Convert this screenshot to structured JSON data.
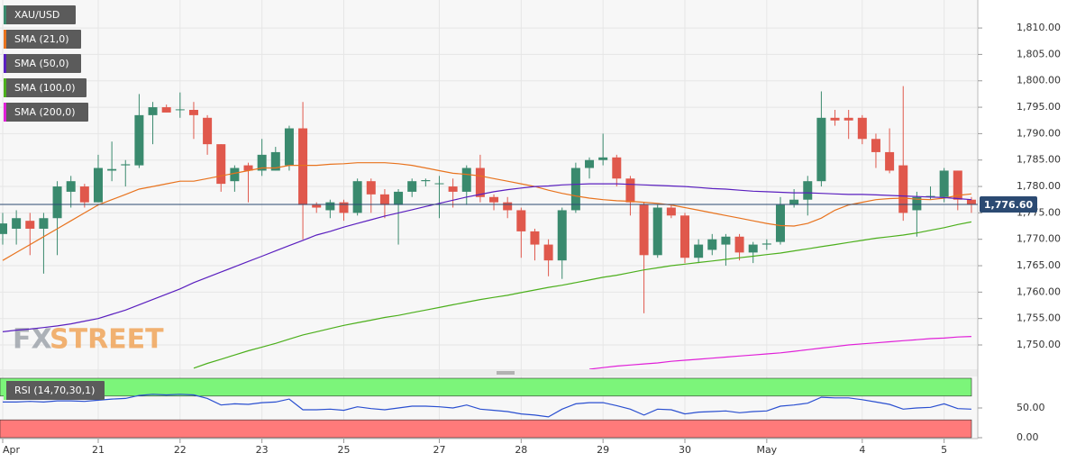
{
  "chart_data": {
    "type": "candlestick",
    "categories": [
      "Apr",
      null,
      null,
      null,
      null,
      null,
      null,
      "21",
      null,
      null,
      null,
      null,
      null,
      "22",
      null,
      null,
      null,
      null,
      null,
      "23",
      null,
      null,
      null,
      null,
      null,
      "25",
      null,
      null,
      null,
      null,
      null,
      null,
      "27",
      null,
      null,
      null,
      null,
      null,
      "28",
      null,
      null,
      null,
      null,
      null,
      "29",
      null,
      null,
      null,
      null,
      null,
      "30",
      null,
      null,
      null,
      null,
      null,
      "May",
      null,
      null,
      null,
      null,
      null,
      null,
      "4",
      null,
      null,
      null,
      null,
      null,
      "5",
      null,
      null
    ],
    "ylim": [
      1745.4,
      1815.3
    ],
    "yticks": [
      {
        "value": 1750,
        "label": "1,750.00"
      },
      {
        "value": 1755,
        "label": "1,755.00"
      },
      {
        "value": 1760,
        "label": "1,760.00"
      },
      {
        "value": 1765,
        "label": "1,765.00"
      },
      {
        "value": 1770,
        "label": "1,770.00"
      },
      {
        "value": 1775,
        "label": "1,775.00"
      },
      {
        "value": 1780,
        "label": "1,780.00"
      },
      {
        "value": 1785,
        "label": "1,785.00"
      },
      {
        "value": 1790,
        "label": "1,790.00"
      },
      {
        "value": 1795,
        "label": "1,795.00"
      },
      {
        "value": 1800,
        "label": "1,800.00"
      },
      {
        "value": 1805,
        "label": "1,805.00"
      },
      {
        "value": 1810,
        "label": "1,810.00"
      }
    ],
    "grid": true,
    "last_price": {
      "value": 1776.6,
      "label": "1,776.60",
      "color": "#2b4a72"
    },
    "watermark": {
      "prefix": "FX",
      "suffix": "STREET"
    },
    "series": [
      {
        "name": "XAU/USD",
        "type": "candlestick",
        "color": "#3a8a6e",
        "up_color": "#3a8a6e",
        "down_color": "#e0584c",
        "open": [
          1771,
          1772,
          1773.5,
          1772,
          1774,
          1779,
          1780,
          1777,
          1783,
          1784,
          1784,
          1793.5,
          1795,
          1794.5,
          1794.5,
          1793,
          1788,
          1781,
          1784,
          1783,
          1783,
          1784,
          1791,
          1776.5,
          1775.5,
          1777,
          1775,
          1781,
          1778.5,
          1776.5,
          1779,
          1781,
          1780.5,
          1780,
          1779,
          1783.5,
          1778,
          1777,
          1775.5,
          1771.5,
          1769,
          1766,
          1775.5,
          1783.5,
          1785,
          1785.5,
          1781.5,
          1776.5,
          1767,
          1776,
          1774.5,
          1766.5,
          1768,
          1769,
          1770.5,
          1767.5,
          1769,
          1769.5,
          1776.5,
          1777.5,
          1781,
          1793,
          1793,
          1793,
          1789,
          1786.5,
          1784,
          1775.5,
          1778,
          1778,
          1783,
          1777.5
        ],
        "high": [
          1775,
          1775.5,
          1775,
          1775,
          1781,
          1782,
          1780.5,
          1786,
          1788.5,
          1785,
          1797.5,
          1796,
          1795.5,
          1797.8,
          1796,
          1793.5,
          1788,
          1784,
          1784.5,
          1789,
          1787.5,
          1791.5,
          1796,
          1777,
          1777.5,
          1777.5,
          1781.5,
          1781.5,
          1779.5,
          1779.5,
          1781.5,
          1781.5,
          1782,
          1781.5,
          1784,
          1786,
          1778.5,
          1778,
          1776,
          1772,
          1770,
          1776,
          1784.5,
          1785.5,
          1790,
          1786,
          1782,
          1777,
          1776.5,
          1776.5,
          1775,
          1770,
          1771,
          1771,
          1771,
          1769.5,
          1770,
          1778,
          1779.5,
          1782,
          1798,
          1794.5,
          1794.5,
          1793.5,
          1790,
          1791,
          1799,
          1779,
          1780,
          1783.5,
          1783,
          1778
        ],
        "low": [
          1769,
          1769,
          1767,
          1763.5,
          1767,
          1776,
          1776,
          1777,
          1781,
          1780,
          1783.5,
          1788,
          1794,
          1793,
          1789,
          1786,
          1779,
          1779,
          1777,
          1782,
          1783,
          1783,
          1770,
          1775,
          1774,
          1773.5,
          1774.5,
          1775,
          1774,
          1769,
          1778,
          1780,
          1774,
          1776,
          1776.5,
          1777,
          1775.5,
          1774,
          1766.5,
          1766,
          1763,
          1762.5,
          1775,
          1781.5,
          1784,
          1780,
          1774.5,
          1756,
          1766.5,
          1774,
          1765.5,
          1765.5,
          1767,
          1765,
          1766,
          1765.5,
          1768,
          1769,
          1776,
          1774.5,
          1780,
          1791.5,
          1789,
          1788,
          1783.5,
          1782.5,
          1773.5,
          1770.5,
          1777.5,
          1777,
          1775.5,
          1775
        ],
        "close": [
          1773,
          1774,
          1772,
          1774,
          1780,
          1781,
          1777,
          1783.5,
          1783.3,
          1784.2,
          1793.5,
          1795,
          1794,
          1794.6,
          1793.5,
          1788,
          1780.5,
          1783.5,
          1783,
          1786,
          1786.5,
          1791,
          1776.5,
          1776,
          1777,
          1775,
          1781,
          1778.5,
          1776.5,
          1779,
          1781,
          1781.2,
          1780.6,
          1779,
          1783.5,
          1778,
          1777,
          1775.5,
          1771.5,
          1769,
          1766,
          1775.5,
          1783.5,
          1785,
          1785.5,
          1781.5,
          1777,
          1767,
          1776,
          1774.5,
          1766.5,
          1769,
          1770,
          1770.5,
          1767.5,
          1769,
          1769.2,
          1776.5,
          1777.5,
          1781,
          1793,
          1792.5,
          1792.5,
          1789,
          1786.5,
          1783,
          1775,
          1778,
          1778.2,
          1783,
          1777.5,
          1776.6
        ]
      },
      {
        "name": "SMA (21,0)",
        "type": "line",
        "color": "#e8731e",
        "values": [
          1766,
          1767.5,
          1769,
          1770.5,
          1772,
          1773.5,
          1775,
          1776.5,
          1777.5,
          1778.5,
          1779.5,
          1780,
          1780.5,
          1781,
          1781,
          1781.5,
          1782,
          1782.5,
          1783,
          1783.5,
          1783.5,
          1784,
          1784,
          1784,
          1784.2,
          1784.3,
          1784.5,
          1784.5,
          1784.5,
          1784.3,
          1784,
          1783.5,
          1783,
          1782.5,
          1782.3,
          1782,
          1781.5,
          1781,
          1780.5,
          1780,
          1779.3,
          1778.7,
          1778.2,
          1777.8,
          1777.5,
          1777.3,
          1777.2,
          1777,
          1776.8,
          1776.5,
          1776,
          1775.5,
          1775,
          1774.5,
          1774,
          1773.5,
          1773,
          1772.6,
          1772.5,
          1773,
          1774,
          1775.5,
          1776.5,
          1777,
          1777.5,
          1777.7,
          1777.8,
          1777.6,
          1777.5,
          1777.8,
          1778.3,
          1778.6
        ]
      },
      {
        "name": "SMA (50,0)",
        "type": "line",
        "color": "#5a1fbf",
        "values": [
          1752.5,
          1752.8,
          1753,
          1753.3,
          1753.6,
          1754,
          1754.5,
          1755,
          1755.8,
          1756.6,
          1757.6,
          1758.6,
          1759.6,
          1760.6,
          1761.8,
          1762.8,
          1763.8,
          1764.8,
          1765.8,
          1766.8,
          1767.8,
          1768.8,
          1769.8,
          1770.8,
          1771.5,
          1772.3,
          1773,
          1773.7,
          1774.4,
          1775,
          1775.6,
          1776.2,
          1776.8,
          1777.4,
          1778,
          1778.5,
          1779,
          1779.4,
          1779.7,
          1780,
          1780.1,
          1780.3,
          1780.4,
          1780.5,
          1780.5,
          1780.5,
          1780.4,
          1780.3,
          1780.2,
          1780.1,
          1780,
          1779.8,
          1779.6,
          1779.5,
          1779.3,
          1779.1,
          1779,
          1778.9,
          1778.8,
          1778.8,
          1778.7,
          1778.6,
          1778.5,
          1778.5,
          1778.4,
          1778.3,
          1778.2,
          1778.1,
          1778,
          1777.9,
          1777.7,
          1777.5
        ]
      },
      {
        "name": "SMA (100,0)",
        "type": "line",
        "color": "#4caf1c",
        "values": [
          null,
          null,
          null,
          null,
          null,
          null,
          null,
          null,
          null,
          null,
          null,
          null,
          null,
          null,
          1745.6,
          1746.5,
          1747.3,
          1748.1,
          1748.9,
          1749.6,
          1750.3,
          1751.1,
          1751.9,
          1752.5,
          1753.1,
          1753.7,
          1754.2,
          1754.7,
          1755.2,
          1755.6,
          1756.1,
          1756.6,
          1757.1,
          1757.6,
          1758.1,
          1758.6,
          1759,
          1759.4,
          1759.9,
          1760.4,
          1760.9,
          1761.3,
          1761.8,
          1762.3,
          1762.8,
          1763.2,
          1763.7,
          1764.2,
          1764.6,
          1765,
          1765.3,
          1765.6,
          1765.9,
          1766.2,
          1766.5,
          1766.8,
          1767.1,
          1767.4,
          1767.8,
          1768.2,
          1768.6,
          1769,
          1769.4,
          1769.8,
          1770.2,
          1770.5,
          1770.8,
          1771.2,
          1771.7,
          1772.2,
          1772.8,
          1773.3
        ]
      },
      {
        "name": "SMA (200,0)",
        "type": "line",
        "color": "#e020d8",
        "values": [
          null,
          null,
          null,
          null,
          null,
          null,
          null,
          null,
          null,
          null,
          null,
          null,
          null,
          null,
          null,
          null,
          null,
          null,
          null,
          null,
          null,
          null,
          null,
          null,
          null,
          null,
          null,
          null,
          null,
          null,
          null,
          null,
          null,
          null,
          null,
          null,
          null,
          null,
          null,
          null,
          null,
          null,
          null,
          1745.4,
          1745.7,
          1746,
          1746.2,
          1746.4,
          1746.6,
          1746.9,
          1747.1,
          1747.3,
          1747.5,
          1747.7,
          1747.9,
          1748.1,
          1748.3,
          1748.5,
          1748.8,
          1749.1,
          1749.4,
          1749.7,
          1750,
          1750.2,
          1750.4,
          1750.6,
          1750.8,
          1751,
          1751.2,
          1751.3,
          1751.5,
          1751.6
        ]
      }
    ],
    "rsi": {
      "name": "RSI (14,70,30,1)",
      "color": "#2a4fd0",
      "ylim": [
        0,
        100
      ],
      "yticks": [
        {
          "value": 50,
          "label": "50.00"
        },
        {
          "value": 0,
          "label": "0.00"
        }
      ],
      "overbought": 70,
      "oversold": 30,
      "overbought_color": "#7cf57a",
      "oversold_color": "#ff7a7a",
      "values": [
        60,
        60,
        61,
        60,
        62,
        62,
        61,
        63,
        65,
        66,
        71,
        73,
        72,
        73,
        72,
        66,
        55,
        57,
        56,
        59,
        60,
        65,
        47,
        47,
        48,
        46,
        52,
        49,
        47,
        50,
        53,
        53,
        52,
        50,
        55,
        48,
        46,
        44,
        40,
        38,
        35,
        48,
        57,
        59,
        59,
        54,
        48,
        38,
        48,
        47,
        40,
        43,
        44,
        45,
        42,
        44,
        45,
        53,
        55,
        58,
        68,
        67,
        67,
        64,
        60,
        56,
        48,
        50,
        51,
        57,
        49,
        48
      ]
    }
  }
}
